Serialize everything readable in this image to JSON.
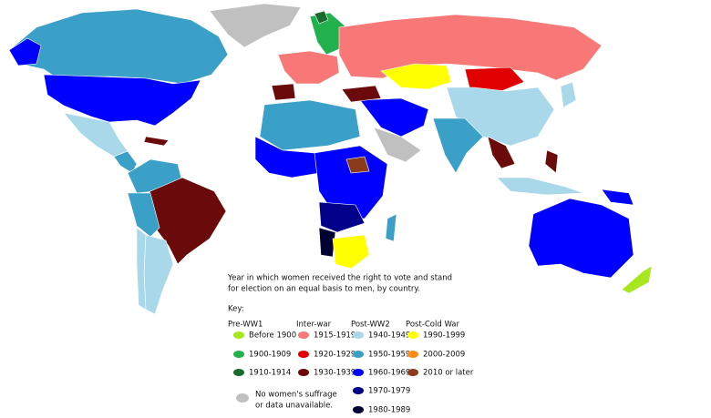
{
  "caption": [
    "Year in which women received the right to vote and stand",
    "for election on an equal basis to men, by country."
  ],
  "key_label": "Key:",
  "groups": [
    {
      "title": "Pre-WW1",
      "items": [
        {
          "label": "Before 1900",
          "color": "#a8e61d"
        },
        {
          "label": "1900-1909",
          "color": "#22b14c"
        },
        {
          "label": "1910-1914",
          "color": "#1a6b2e"
        }
      ]
    },
    {
      "title": "Inter-war",
      "items": [
        {
          "label": "1915-1919",
          "color": "#f87878"
        },
        {
          "label": "1920-1929",
          "color": "#e00000"
        },
        {
          "label": "1930-1939",
          "color": "#6a0a0a"
        }
      ]
    },
    {
      "title": "Post-WW2",
      "items": [
        {
          "label": "1940-1949",
          "color": "#a8d8ea"
        },
        {
          "label": "1950-1959",
          "color": "#3aa0c8"
        },
        {
          "label": "1960-1969",
          "color": "#0000ff"
        },
        {
          "label": "1970-1979",
          "color": "#00008b"
        },
        {
          "label": "1980-1989",
          "color": "#000033"
        }
      ]
    },
    {
      "title": "Post-Cold War",
      "items": [
        {
          "label": "1990-1999",
          "color": "#ffff00"
        },
        {
          "label": "2000-2009",
          "color": "#ff8c1a"
        },
        {
          "label": "2010 or later",
          "color": "#8b3a1a"
        }
      ]
    }
  ],
  "no_data": {
    "lines": [
      "No women's suffrage",
      "or data unavailable."
    ],
    "color": "#c0c0c0"
  }
}
